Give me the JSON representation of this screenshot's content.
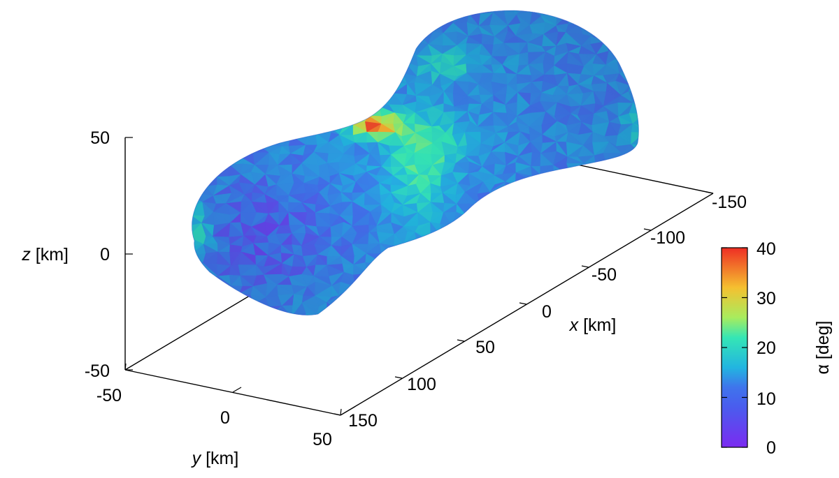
{
  "chart_data": {
    "type": "3d-surface",
    "x_axis": {
      "label_var": "x",
      "label_unit": " [km]",
      "ticks": [
        "150",
        "100",
        "50",
        "0",
        "-50",
        "-100",
        "-150"
      ],
      "range": [
        -150,
        150
      ]
    },
    "y_axis": {
      "label_var": "y",
      "label_unit": " [km]",
      "ticks": [
        "-50",
        "0",
        "50"
      ],
      "range": [
        -50,
        50
      ]
    },
    "z_axis": {
      "label_var": "z",
      "label_unit": " [km]",
      "ticks": [
        "50",
        "0",
        "-50"
      ],
      "range": [
        -50,
        50
      ]
    },
    "colorbar": {
      "label": "α [deg]",
      "ticks": [
        "0",
        "10",
        "20",
        "30",
        "40"
      ],
      "range": [
        0,
        40
      ],
      "colormap": [
        "#7b2bf0",
        "#3f74ec",
        "#22b5e0",
        "#35e6b5",
        "#a8ec5e",
        "#f5c030",
        "#ee4a2a"
      ]
    },
    "surface": {
      "shape": "bilobed elongated body along x",
      "dominant_color": "#3b6df0",
      "hotspots": [
        {
          "region": "neck top ridge",
          "alpha_deg": 35
        },
        {
          "region": "neck sides",
          "alpha_deg": 20
        },
        {
          "region": "far lobe top band",
          "alpha_deg": 17
        }
      ]
    }
  }
}
